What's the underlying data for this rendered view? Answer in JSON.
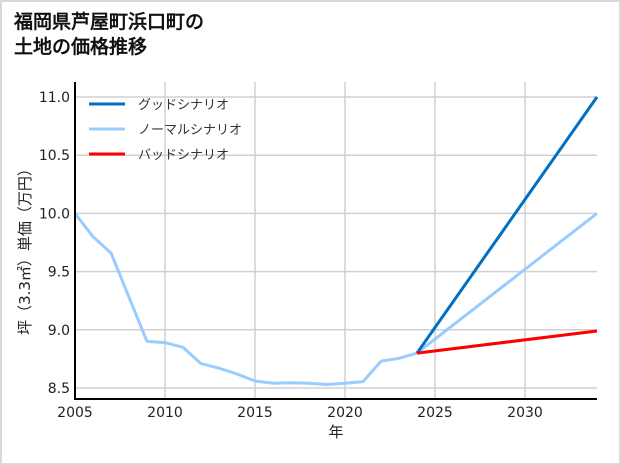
{
  "title_lines": [
    "福岡県芦屋町浜口町の",
    "土地の価格推移"
  ],
  "chart_data": {
    "type": "line",
    "title": "福岡県芦屋町浜口町の土地の価格推移",
    "xlabel": "年",
    "ylabel": "坪（3.3㎡）単価（万円）",
    "xlim": [
      2005,
      2034
    ],
    "ylim": [
      8.4,
      11.13
    ],
    "grid": true,
    "legend_position": "upper left",
    "x_ticks": [
      2005,
      2010,
      2015,
      2020,
      2025,
      2030
    ],
    "x_tick_labels": [
      "2005",
      "2010",
      "2015",
      "2020",
      "2025",
      "2030"
    ],
    "y_ticks": [
      8.5,
      9.0,
      9.5,
      10.0,
      10.5,
      11.0
    ],
    "y_tick_labels": [
      "8.5",
      "9.0",
      "9.5",
      "10.0",
      "10.5",
      "11.0"
    ],
    "series": [
      {
        "name": "グッドシナリオ",
        "color": "#0070c0",
        "x": [
          2024,
          2034
        ],
        "values": [
          8.8,
          11.0
        ]
      },
      {
        "name": "ノーマルシナリオ",
        "color": "#99ccff",
        "x": [
          2005,
          2006,
          2007,
          2008,
          2009,
          2010,
          2011,
          2012,
          2013,
          2014,
          2015,
          2016,
          2017,
          2018,
          2019,
          2020,
          2021,
          2022,
          2023,
          2024,
          2034
        ],
        "values": [
          10.0,
          9.8,
          9.66,
          9.28,
          8.9,
          8.89,
          8.85,
          8.71,
          8.67,
          8.62,
          8.56,
          8.54,
          8.545,
          8.54,
          8.53,
          8.54,
          8.555,
          8.73,
          8.755,
          8.8,
          10.0
        ]
      },
      {
        "name": "バッドシナリオ",
        "color": "#ff0000",
        "x": [
          2024,
          2034
        ],
        "values": [
          8.8,
          8.99
        ]
      }
    ]
  }
}
